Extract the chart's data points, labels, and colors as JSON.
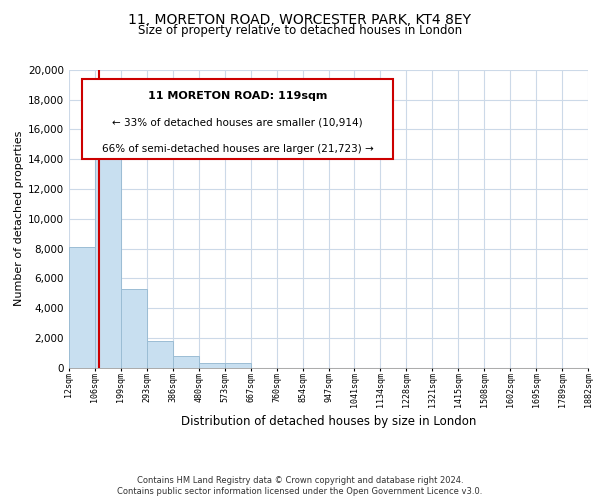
{
  "title": "11, MORETON ROAD, WORCESTER PARK, KT4 8EY",
  "subtitle": "Size of property relative to detached houses in London",
  "xlabel": "Distribution of detached houses by size in London",
  "ylabel": "Number of detached properties",
  "bar_color": "#c8dff0",
  "bar_edge_color": "#9bbdd4",
  "property_line_color": "#cc0000",
  "property_sqm": 119,
  "annotation_title": "11 MORETON ROAD: 119sqm",
  "annotation_line1": "← 33% of detached houses are smaller (10,914)",
  "annotation_line2": "66% of semi-detached houses are larger (21,723) →",
  "bin_edges": [
    12,
    106,
    199,
    293,
    386,
    480,
    573,
    667,
    760,
    854,
    947,
    1041,
    1134,
    1228,
    1321,
    1415,
    1508,
    1602,
    1695,
    1789,
    1882
  ],
  "bin_labels": [
    "12sqm",
    "106sqm",
    "199sqm",
    "293sqm",
    "386sqm",
    "480sqm",
    "573sqm",
    "667sqm",
    "760sqm",
    "854sqm",
    "947sqm",
    "1041sqm",
    "1134sqm",
    "1228sqm",
    "1321sqm",
    "1415sqm",
    "1508sqm",
    "1602sqm",
    "1695sqm",
    "1789sqm",
    "1882sqm"
  ],
  "bar_heights": [
    8100,
    16500,
    5300,
    1750,
    800,
    280,
    270,
    0,
    0,
    0,
    0,
    0,
    0,
    0,
    0,
    0,
    0,
    0,
    0,
    0
  ],
  "ylim": [
    0,
    20000
  ],
  "yticks": [
    0,
    2000,
    4000,
    6000,
    8000,
    10000,
    12000,
    14000,
    16000,
    18000,
    20000
  ],
  "footer_line1": "Contains HM Land Registry data © Crown copyright and database right 2024.",
  "footer_line2": "Contains public sector information licensed under the Open Government Licence v3.0.",
  "bg_color": "#ffffff",
  "grid_color": "#ccd9e8"
}
